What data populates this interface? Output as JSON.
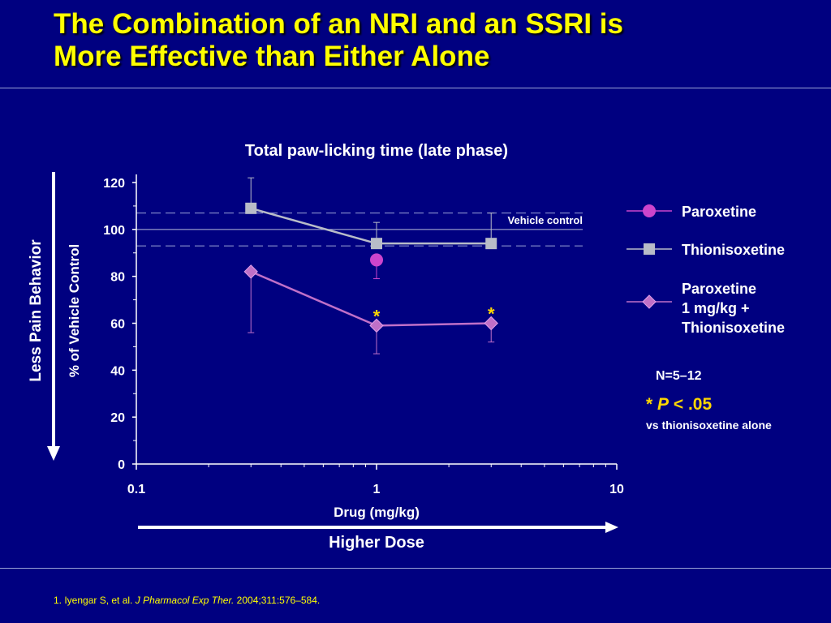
{
  "slide": {
    "title_line1": "The Combination of an NRI and an SSRI is",
    "title_line2": "More Effective than Either Alone",
    "footnote_authors": "1. Iyengar S, et al. ",
    "footnote_journal": "J Pharmacol Exp Ther.",
    "footnote_details": " 2004;311:576–584."
  },
  "annotations": {
    "left_arrow_label": "Less Pain Behavior",
    "bottom_arrow_label": "Higher Dose",
    "n_text": "N=5–12",
    "sig_star": "*",
    "sig_p": "P",
    "sig_value": " < .05",
    "sig_sub": "vs thionisoxetine alone",
    "vehicle_label": "Vehicle control"
  },
  "colors": {
    "background": "#000080",
    "title": "#ffff00",
    "paroxetine": "#cc44cc",
    "thionisoxetine": "#b8bcc8",
    "combo": "#c070c8",
    "star": "#ffd700"
  },
  "chart_data": {
    "type": "line",
    "title": "Total paw-licking time (late phase)",
    "xlabel": "Drug (mg/kg)",
    "ylabel": "% of Vehicle Control",
    "xscale": "log",
    "xlim": [
      0.1,
      10
    ],
    "ylim": [
      0,
      120
    ],
    "xticks": [
      "0.1",
      "1",
      "10"
    ],
    "yticks": [
      "0",
      "20",
      "40",
      "60",
      "80",
      "100",
      "120"
    ],
    "vehicle_control": {
      "value": 100,
      "band": [
        93,
        107
      ]
    },
    "legend_position": "right",
    "series": [
      {
        "name": "Paroxetine",
        "marker": "circle",
        "points": [
          {
            "x": 1,
            "y": 87,
            "err_low": 8,
            "err_high": 0
          }
        ]
      },
      {
        "name": "Thionisoxetine",
        "marker": "square",
        "points": [
          {
            "x": 0.3,
            "y": 109,
            "err_low": 0,
            "err_high": 13
          },
          {
            "x": 1,
            "y": 94,
            "err_low": 0,
            "err_high": 9
          },
          {
            "x": 3,
            "y": 94,
            "err_low": 0,
            "err_high": 13
          }
        ]
      },
      {
        "name": "Paroxetine 1 mg/kg + Thionisoxetine",
        "name_lines": [
          "Paroxetine",
          "1 mg/kg +",
          "Thionisoxetine"
        ],
        "marker": "diamond",
        "points": [
          {
            "x": 0.3,
            "y": 82,
            "err_low": 26,
            "err_high": 0,
            "significant": false
          },
          {
            "x": 1,
            "y": 59,
            "err_low": 12,
            "err_high": 0,
            "significant": true
          },
          {
            "x": 3,
            "y": 60,
            "err_low": 8,
            "err_high": 0,
            "significant": true
          }
        ]
      }
    ]
  }
}
